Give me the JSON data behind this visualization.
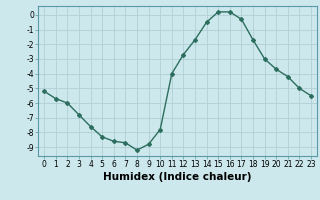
{
  "x": [
    0,
    1,
    2,
    3,
    4,
    5,
    6,
    7,
    8,
    9,
    10,
    11,
    12,
    13,
    14,
    15,
    16,
    17,
    18,
    19,
    20,
    21,
    22,
    23
  ],
  "y": [
    -5.2,
    -5.7,
    -6.0,
    -6.8,
    -7.6,
    -8.3,
    -8.6,
    -8.7,
    -9.2,
    -8.8,
    -7.8,
    -4.0,
    -2.7,
    -1.7,
    -0.5,
    0.2,
    0.2,
    -0.3,
    -1.7,
    -3.0,
    -3.7,
    -4.2,
    -5.0,
    -5.5
  ],
  "line_color": "#2d6e5e",
  "marker": "D",
  "marker_size": 2.0,
  "bg_color": "#cce8ec",
  "grid_color": "#b0ced4",
  "xlabel": "Humidex (Indice chaleur)",
  "ylim": [
    -9.6,
    0.6
  ],
  "xlim": [
    -0.5,
    23.5
  ],
  "yticks": [
    0,
    -1,
    -2,
    -3,
    -4,
    -5,
    -6,
    -7,
    -8,
    -9
  ],
  "xticks": [
    0,
    1,
    2,
    3,
    4,
    5,
    6,
    7,
    8,
    9,
    10,
    11,
    12,
    13,
    14,
    15,
    16,
    17,
    18,
    19,
    20,
    21,
    22,
    23
  ],
  "tick_fontsize": 5.5,
  "xlabel_fontsize": 7.5,
  "line_width": 1.0
}
